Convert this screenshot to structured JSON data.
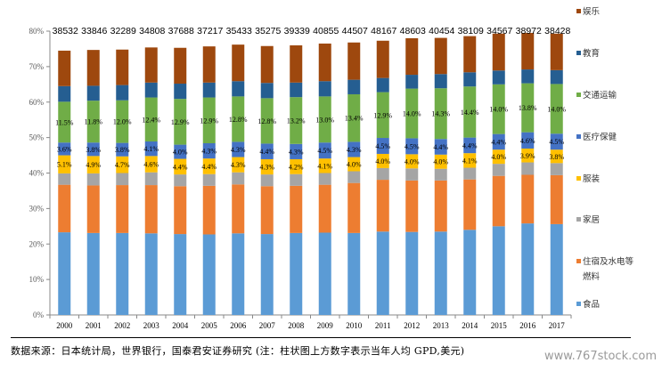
{
  "chart_data": {
    "type": "bar",
    "stacked": true,
    "title": "",
    "xlabel": "",
    "ylabel": "",
    "ylim": [
      0,
      80
    ],
    "yticks": [
      "0%",
      "10%",
      "20%",
      "30%",
      "40%",
      "50%",
      "60%",
      "70%",
      "80%"
    ],
    "categories": [
      "2000",
      "2001",
      "2002",
      "2003",
      "2004",
      "2005",
      "2006",
      "2007",
      "2008",
      "2009",
      "2010",
      "2011",
      "2012",
      "2013",
      "2014",
      "2015",
      "2016",
      "2017"
    ],
    "top_labels": [
      "38532",
      "33846",
      "32289",
      "34808",
      "37688",
      "37217",
      "35433",
      "35275",
      "39339",
      "40855",
      "44507",
      "48167",
      "48603",
      "40454",
      "38109",
      "34567",
      "38972",
      "38428"
    ],
    "top_labels_meaning": "当年人均GPD,美元",
    "legend_position": "right",
    "series": [
      {
        "name": "食品",
        "color": "#5B9BD5",
        "values": [
          23.3,
          23.1,
          23.1,
          23.0,
          22.8,
          22.7,
          23.0,
          22.8,
          23.1,
          23.2,
          23.1,
          23.5,
          23.4,
          23.5,
          24.0,
          25.0,
          25.8,
          25.6
        ]
      },
      {
        "name": "住宿及水电等燃料",
        "color": "#ED7D31",
        "values": [
          13.4,
          13.4,
          13.5,
          13.6,
          13.5,
          13.7,
          13.8,
          13.5,
          13.3,
          13.5,
          14.1,
          14.6,
          14.5,
          14.4,
          14.2,
          14.2,
          13.7,
          13.8
        ]
      },
      {
        "name": "家居",
        "color": "#A5A5A5",
        "values": [
          3.2,
          3.4,
          3.4,
          3.6,
          3.3,
          3.3,
          3.4,
          3.3,
          3.3,
          3.3,
          3.3,
          3.3,
          3.4,
          3.3,
          3.3,
          3.4,
          3.5,
          3.4
        ]
      },
      {
        "name": "服装",
        "color": "#FFC000",
        "values": [
          5.1,
          4.9,
          4.7,
          4.6,
          4.4,
          4.4,
          4.3,
          4.3,
          4.2,
          4.1,
          4.0,
          4.0,
          4.0,
          4.0,
          4.1,
          4.0,
          3.9,
          3.8
        ]
      },
      {
        "name": "医疗保健",
        "color": "#4472C4",
        "values": [
          3.6,
          3.8,
          3.8,
          4.1,
          4.0,
          4.3,
          4.3,
          4.4,
          4.3,
          4.5,
          4.3,
          4.5,
          4.5,
          4.4,
          4.4,
          4.4,
          4.6,
          4.5
        ]
      },
      {
        "name": "交通运输",
        "color": "#70AD47",
        "values": [
          11.5,
          11.8,
          12.0,
          12.4,
          12.9,
          12.9,
          12.8,
          12.8,
          13.2,
          13.0,
          13.4,
          12.9,
          14.0,
          14.3,
          14.4,
          14.0,
          13.8,
          14.0
        ]
      },
      {
        "name": "教育",
        "color": "#255E91",
        "values": [
          4.4,
          4.2,
          4.3,
          4.2,
          4.3,
          4.2,
          4.3,
          4.3,
          4.1,
          4.3,
          4.1,
          4.0,
          3.9,
          4.0,
          4.0,
          3.9,
          3.9,
          3.9
        ]
      },
      {
        "name": "娱乐",
        "color": "#9E480E",
        "values": [
          10.0,
          10.1,
          10.0,
          9.9,
          10.1,
          10.2,
          10.3,
          10.4,
          10.5,
          10.6,
          10.5,
          10.5,
          10.3,
          10.2,
          10.2,
          10.4,
          10.3,
          10.3
        ]
      }
    ],
    "labeled_series": [
      "服装",
      "医疗保健",
      "交通运输"
    ],
    "label_texts": {
      "服装": [
        "5.1%",
        "4.9%",
        "4.7%",
        "4.6%",
        "4.4%",
        "4.4%",
        "4.3%",
        "4.3%",
        "4.2%",
        "4.1%",
        "4.0%",
        "4.0%",
        "4.0%",
        "4.0%",
        "4.1%",
        "4.0%",
        "3.9%",
        "3.8%"
      ],
      "医疗保健": [
        "3.6%",
        "3.8%",
        "3.8%",
        "4.1%",
        "4.0%",
        "4.3%",
        "4.3%",
        "4.4%",
        "4.3%",
        "4.5%",
        "4.3%",
        "4.5%",
        "4.5%",
        "4.4%",
        "4.4%",
        "4.4%",
        "4.6%",
        "4.5%"
      ],
      "交通运输": [
        "11.5%",
        "11.8%",
        "12.0%",
        "12.4%",
        "12.9%",
        "12.9%",
        "12.8%",
        "12.8%",
        "13.2%",
        "13.0%",
        "13.4%",
        "12.9%",
        "14.0%",
        "14.3%",
        "14.4%",
        "14.0%",
        "13.8%",
        "14.0%"
      ]
    },
    "legend": [
      {
        "name": "娱乐",
        "lines": [
          "娱乐"
        ],
        "color": "#9E480E"
      },
      {
        "name": "教育",
        "lines": [
          "教育"
        ],
        "color": "#255E91"
      },
      {
        "name": "交通运输",
        "lines": [
          "交通运输"
        ],
        "color": "#70AD47"
      },
      {
        "name": "医疗保健",
        "lines": [
          "医疗保健"
        ],
        "color": "#4472C4"
      },
      {
        "name": "服装",
        "lines": [
          "服装"
        ],
        "color": "#FFC000"
      },
      {
        "name": "家居",
        "lines": [
          "家居"
        ],
        "color": "#A5A5A5"
      },
      {
        "name": "住宿及水电等燃料",
        "lines": [
          "住宿及水电等",
          "燃料"
        ],
        "color": "#ED7D31"
      },
      {
        "name": "食品",
        "lines": [
          "食品"
        ],
        "color": "#5B9BD5"
      }
    ]
  },
  "footer": {
    "source_text": "数据来源：日本统计局，世界银行，国泰君安证券研究 (注：柱状图上方数字表示当年人均 GPD,美元)"
  },
  "watermark": "www.767stock.com"
}
